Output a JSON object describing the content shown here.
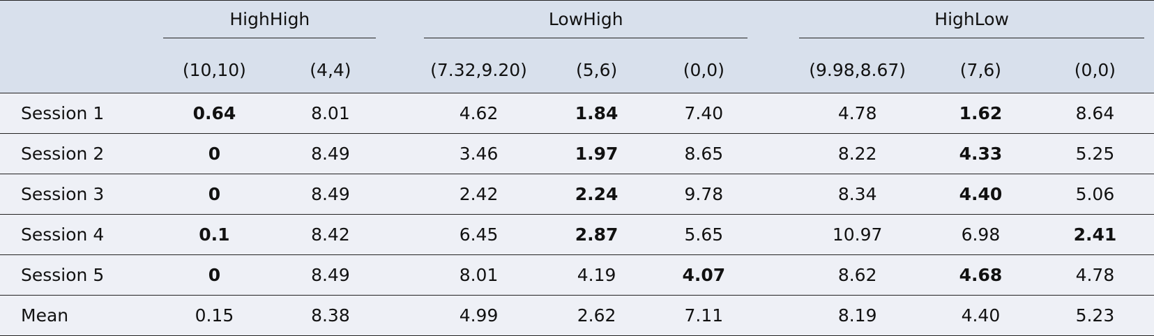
{
  "groups": [
    {
      "title": "HighHigh",
      "payoffs": [
        "(10,10)",
        "(4,4)"
      ]
    },
    {
      "title": "LowHigh",
      "payoffs": [
        "(7.32,9.20)",
        "(5,6)",
        "(0,0)"
      ]
    },
    {
      "title": "HighLow",
      "payoffs": [
        "(9.98,8.67)",
        "(7,6)",
        "(0,0)"
      ]
    }
  ],
  "rows": [
    {
      "label": "Session 1",
      "cells": [
        {
          "v": "0.64",
          "b": true
        },
        {
          "v": "8.01",
          "b": false
        },
        {
          "v": "4.62",
          "b": false
        },
        {
          "v": "1.84",
          "b": true
        },
        {
          "v": "7.40",
          "b": false
        },
        {
          "v": "4.78",
          "b": false
        },
        {
          "v": "1.62",
          "b": true
        },
        {
          "v": "8.64",
          "b": false
        }
      ]
    },
    {
      "label": "Session 2",
      "cells": [
        {
          "v": "0",
          "b": true
        },
        {
          "v": "8.49",
          "b": false
        },
        {
          "v": "3.46",
          "b": false
        },
        {
          "v": "1.97",
          "b": true
        },
        {
          "v": "8.65",
          "b": false
        },
        {
          "v": "8.22",
          "b": false
        },
        {
          "v": "4.33",
          "b": true
        },
        {
          "v": "5.25",
          "b": false
        }
      ]
    },
    {
      "label": "Session 3",
      "cells": [
        {
          "v": "0",
          "b": true
        },
        {
          "v": "8.49",
          "b": false
        },
        {
          "v": "2.42",
          "b": false
        },
        {
          "v": "2.24",
          "b": true
        },
        {
          "v": "9.78",
          "b": false
        },
        {
          "v": "8.34",
          "b": false
        },
        {
          "v": "4.40",
          "b": true
        },
        {
          "v": "5.06",
          "b": false
        }
      ]
    },
    {
      "label": "Session 4",
      "cells": [
        {
          "v": "0.1",
          "b": true
        },
        {
          "v": "8.42",
          "b": false
        },
        {
          "v": "6.45",
          "b": false
        },
        {
          "v": "2.87",
          "b": true
        },
        {
          "v": "5.65",
          "b": false
        },
        {
          "v": "10.97",
          "b": false
        },
        {
          "v": "6.98",
          "b": false
        },
        {
          "v": "2.41",
          "b": true
        }
      ]
    },
    {
      "label": "Session 5",
      "cells": [
        {
          "v": "0",
          "b": true
        },
        {
          "v": "8.49",
          "b": false
        },
        {
          "v": "8.01",
          "b": false
        },
        {
          "v": "4.19",
          "b": false
        },
        {
          "v": "4.07",
          "b": true
        },
        {
          "v": "8.62",
          "b": false
        },
        {
          "v": "4.68",
          "b": true
        },
        {
          "v": "4.78",
          "b": false
        }
      ]
    },
    {
      "label": "Mean",
      "cells": [
        {
          "v": "0.15",
          "b": false
        },
        {
          "v": "8.38",
          "b": false
        },
        {
          "v": "4.99",
          "b": false
        },
        {
          "v": "2.62",
          "b": false
        },
        {
          "v": "7.11",
          "b": false
        },
        {
          "v": "8.19",
          "b": false
        },
        {
          "v": "4.40",
          "b": false
        },
        {
          "v": "5.23",
          "b": false
        }
      ]
    }
  ],
  "colors": {
    "header_bg": "#d8e0ec",
    "body_bg": "#eef0f6",
    "rule": "#222222"
  }
}
